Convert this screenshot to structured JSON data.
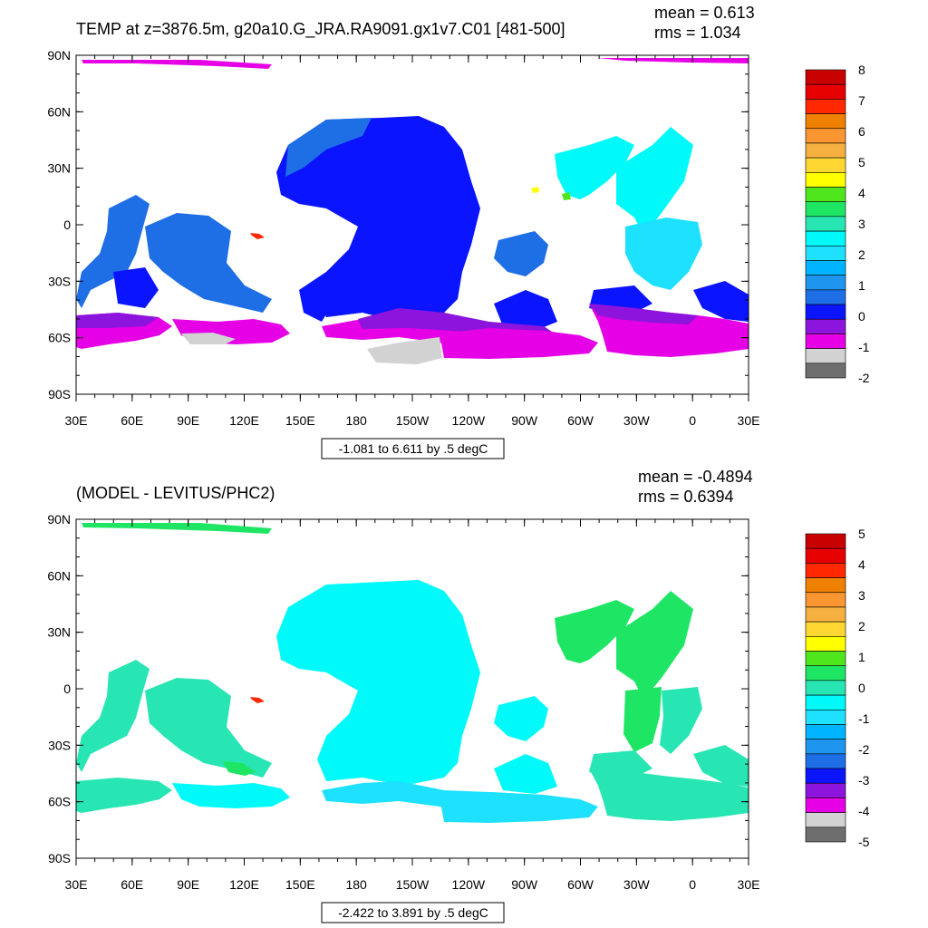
{
  "panels": [
    {
      "id": "top",
      "title": "TEMP at z=3876.5m, g20a10.G_JRA.RA9091.gx1v7.C01 [481-500]",
      "mean_label": "mean = 0.613",
      "rms_label": "rms = 1.034",
      "range_label": "-1.081 to 6.611 by .5 degC",
      "colorbar": {
        "labels": [
          "8",
          "7",
          "6",
          "5",
          "4",
          "3",
          "2",
          "1",
          "0",
          "-1",
          "-2"
        ],
        "colors": [
          "#c80000",
          "#e60000",
          "#ff2800",
          "#f08000",
          "#fa9632",
          "#f5b040",
          "#ffd732",
          "#ffff00",
          "#50e61e",
          "#1ee664",
          "#28e6b4",
          "#00fafa",
          "#1ee1ff",
          "#00b4ff",
          "#1e96f0",
          "#1e6ee6",
          "#0a14ff",
          "#8c14dc",
          "#e600e6",
          "#d2d2d2",
          "#6e6e6e"
        ]
      }
    },
    {
      "id": "bottom",
      "title": "(MODEL - LEVITUS/PHC2)",
      "mean_label": "mean = -0.4894",
      "rms_label": "rms = 0.6394",
      "range_label": "-2.422 to 3.891 by .5 degC",
      "colorbar": {
        "labels": [
          "5",
          "4",
          "3",
          "2",
          "1",
          "0",
          "-1",
          "-2",
          "-3",
          "-4",
          "-5"
        ],
        "colors": [
          "#c80000",
          "#e60000",
          "#ff2800",
          "#f08000",
          "#fa9632",
          "#f5b040",
          "#ffd732",
          "#ffff00",
          "#50e61e",
          "#1ee664",
          "#28e6b4",
          "#00fafa",
          "#1ee1ff",
          "#00b4ff",
          "#1e96f0",
          "#1e6ee6",
          "#0a14ff",
          "#8c14dc",
          "#e600e6",
          "#d2d2d2",
          "#6e6e6e"
        ]
      }
    }
  ],
  "lat_labels": [
    "90N",
    "60N",
    "30N",
    "0",
    "30S",
    "60S",
    "90S"
  ],
  "lon_labels": [
    "30E",
    "60E",
    "90E",
    "120E",
    "150E",
    "180",
    "150W",
    "120W",
    "90W",
    "60W",
    "30W",
    "0",
    "30E"
  ]
}
